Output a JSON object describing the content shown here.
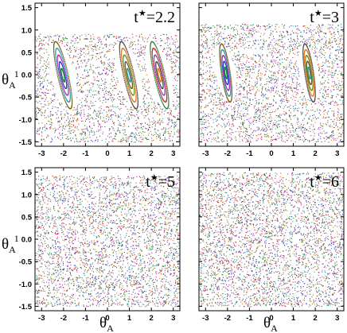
{
  "chart_data": [
    {
      "type": "scatter",
      "panel": "top-left",
      "annotation": {
        "prefix": "t",
        "star": "★",
        "value": "=2.2"
      },
      "x_axis": {
        "ticks": [
          "-3",
          "-2",
          "-1",
          "0",
          "1",
          "2",
          "3"
        ],
        "range": [
          -3.3,
          3.3
        ],
        "tick_labels_shown": true
      },
      "y_axis": {
        "ticks": [
          "-1.5",
          "-1.0",
          "-0.5",
          "0.0",
          "0.5",
          "1.0",
          "1.5"
        ],
        "range": [
          -1.6,
          1.6
        ],
        "tick_labels_shown": true
      },
      "chaos_level": 0.35,
      "islands": [
        {
          "cx": -2.05,
          "cy": 0.0
        },
        {
          "cx": 0.95,
          "cy": 0.0
        },
        {
          "cx": 2.35,
          "cy": 0.0
        }
      ],
      "island_half_width": 0.55,
      "island_half_height": 0.75,
      "island_tilt": -0.45
    },
    {
      "type": "scatter",
      "panel": "top-right",
      "annotation": {
        "prefix": "t",
        "star": "★",
        "value": "=3"
      },
      "x_axis": {
        "ticks": [
          "-3",
          "-2",
          "-1",
          "0",
          "1",
          "2",
          "3"
        ],
        "range": [
          -3.3,
          3.3
        ],
        "tick_labels_shown": true
      },
      "y_axis": {
        "ticks": [
          "-1.5",
          "-1.0",
          "-0.5",
          "0.0",
          "0.5",
          "1.0",
          "1.5"
        ],
        "range": [
          -1.6,
          1.6
        ],
        "tick_labels_shown": false
      },
      "chaos_level": 0.6,
      "islands": [
        {
          "cx": -2.1,
          "cy": 0.05
        },
        {
          "cx": 1.7,
          "cy": 0.05
        }
      ],
      "island_half_width": 0.45,
      "island_half_height": 0.65,
      "island_tilt": -0.3
    },
    {
      "type": "scatter",
      "panel": "bottom-left",
      "annotation": {
        "prefix": "t",
        "star": "★",
        "value": "=5"
      },
      "x_axis": {
        "ticks": [
          "-3",
          "-2",
          "-1",
          "0",
          "1",
          "2",
          "3"
        ],
        "range": [
          -3.3,
          3.3
        ],
        "tick_labels_shown": true
      },
      "y_axis": {
        "ticks": [
          "-1.5",
          "-1.0",
          "-0.5",
          "0.0",
          "0.5",
          "1.0",
          "1.5"
        ],
        "range": [
          -1.6,
          1.6
        ],
        "tick_labels_shown": true
      },
      "chaos_level": 0.92,
      "islands": [],
      "gaps": [
        {
          "cx": -2.15,
          "cy": 0.0
        },
        {
          "cx": -0.8,
          "cy": 0.0
        },
        {
          "cx": 1.55,
          "cy": 0.1
        }
      ]
    },
    {
      "type": "scatter",
      "panel": "bottom-right",
      "annotation": {
        "prefix": "t",
        "star": "★",
        "value": "=6"
      },
      "x_axis": {
        "ticks": [
          "-3",
          "-2",
          "-1",
          "0",
          "1",
          "2",
          "3"
        ],
        "range": [
          -3.3,
          3.3
        ],
        "tick_labels_shown": true
      },
      "y_axis": {
        "ticks": [
          "-1.5",
          "-1.0",
          "-0.5",
          "0.0",
          "0.5",
          "1.0",
          "1.5"
        ],
        "range": [
          -1.6,
          1.6
        ],
        "tick_labels_shown": false
      },
      "chaos_level": 1.0,
      "islands": []
    }
  ],
  "shared_labels": {
    "ylabel_main": "θ",
    "ylabel_sub": "A",
    "ylabel_sup": "1",
    "xlabel_main": "θ",
    "xlabel_sub": "A"
  },
  "series_colors": [
    "#d21f2a",
    "#1a8a2e",
    "#2c3fbf",
    "#b02ab3",
    "#2a9aa8",
    "#7b5a1f",
    "#6b8e23",
    "#e07a1f",
    "#4b4b4b",
    "#8e44ad"
  ]
}
